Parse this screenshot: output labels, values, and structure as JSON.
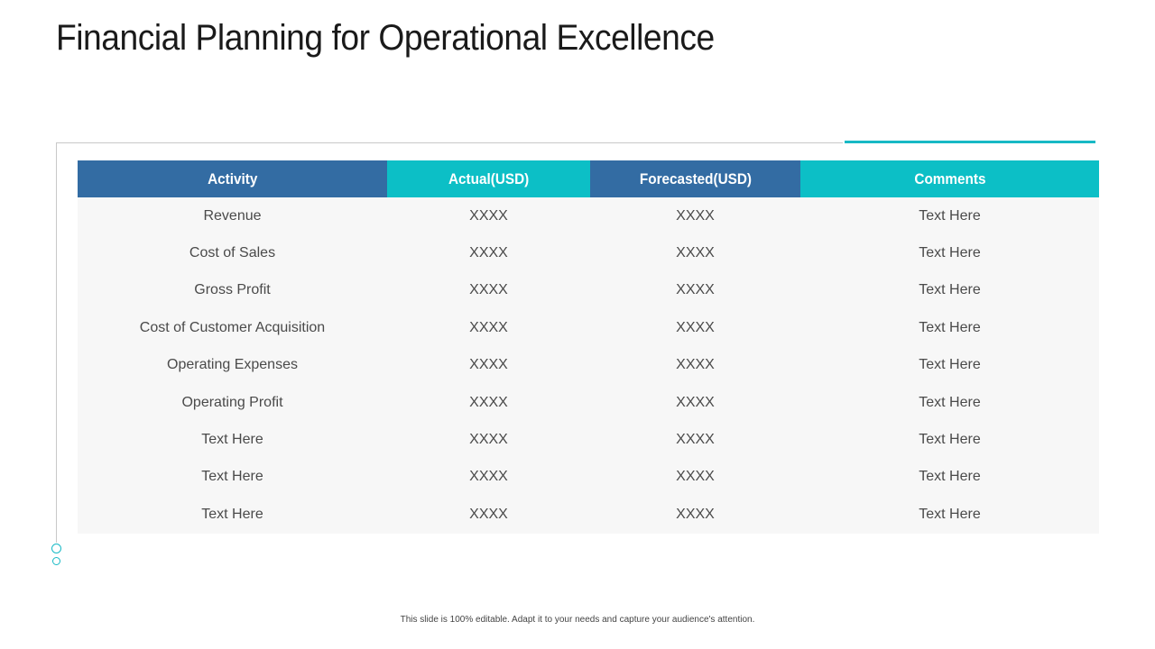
{
  "slide": {
    "title": "Financial Planning for Operational Excellence",
    "footer": "This slide is 100% editable. Adapt it to your needs and capture your audience's attention."
  },
  "table": {
    "headers": [
      "Activity",
      "Actual(USD)",
      "Forecasted(USD)",
      "Comments"
    ],
    "rows": [
      [
        "Revenue",
        "XXXX",
        "XXXX",
        "Text Here"
      ],
      [
        "Cost of Sales",
        "XXXX",
        "XXXX",
        "Text Here"
      ],
      [
        "Gross Profit",
        "XXXX",
        "XXXX",
        "Text Here"
      ],
      [
        "Cost of Customer Acquisition",
        "XXXX",
        "XXXX",
        "Text Here"
      ],
      [
        "Operating Expenses",
        "XXXX",
        "XXXX",
        "Text Here"
      ],
      [
        "Operating Profit",
        "XXXX",
        "XXXX",
        "Text Here"
      ],
      [
        "Text Here",
        "XXXX",
        "XXXX",
        "Text Here"
      ],
      [
        "Text Here",
        "XXXX",
        "XXXX",
        "Text Here"
      ],
      [
        "Text Here",
        "XXXX",
        "XXXX",
        "Text Here"
      ]
    ]
  },
  "colors": {
    "header_blue": "#336ca3",
    "header_teal": "#0cbfc6",
    "accent": "#17b9c5",
    "row_background": "#f7f7f7"
  },
  "icons": [
    "ring-icon",
    "ring-icon"
  ]
}
